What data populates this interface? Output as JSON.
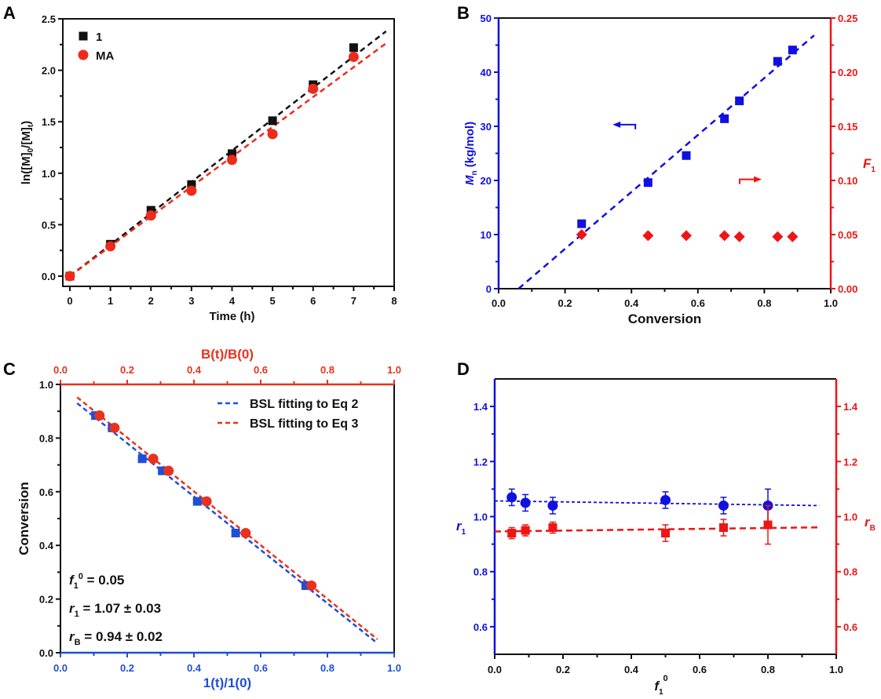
{
  "colors": {
    "black": "#111111",
    "red": "#ee2a1b",
    "blue": "#1010e0",
    "blue_c": "#1f4fd8",
    "red_c": "#e8321e",
    "red_d": "#ee1515"
  },
  "chart_data": [
    {
      "panel": "A",
      "type": "scatter",
      "xlabel": "Time (h)",
      "ylabel": "ln([M]0/[M]t)",
      "xlim": [
        0,
        8
      ],
      "ylim": [
        -0.1,
        2.5
      ],
      "xticks": [
        "0",
        "1",
        "2",
        "3",
        "4",
        "5",
        "6",
        "7",
        "8"
      ],
      "yticks": [
        "0.0",
        "0.5",
        "1.0",
        "1.5",
        "2.0",
        "2.5"
      ],
      "legend_position": "top-left",
      "series": [
        {
          "name": "1",
          "marker": "square",
          "color": "#111111",
          "x": [
            0,
            1,
            2,
            3,
            4,
            5,
            6,
            7
          ],
          "y": [
            0.0,
            0.31,
            0.64,
            0.89,
            1.19,
            1.51,
            1.86,
            2.22
          ],
          "fit": {
            "slope": 0.305,
            "intercept": 0.0,
            "x_range": [
              0,
              7.8
            ]
          }
        },
        {
          "name": "MA",
          "marker": "circle",
          "color": "#ee2a1b",
          "x": [
            0,
            1,
            2,
            3,
            4,
            5,
            6,
            7
          ],
          "y": [
            0.0,
            0.29,
            0.59,
            0.83,
            1.13,
            1.38,
            1.82,
            2.13
          ],
          "fit": {
            "slope": 0.29,
            "intercept": 0.0,
            "x_range": [
              0,
              7.8
            ]
          }
        }
      ]
    },
    {
      "panel": "B",
      "type": "scatter",
      "xlabel": "Conversion",
      "ylabel_left": "Mn (kg/mol)",
      "ylabel_right": "F1",
      "xlim": [
        0,
        1.0
      ],
      "ylim_left": [
        0,
        50
      ],
      "ylim_right": [
        0,
        0.25
      ],
      "xticks": [
        "0.0",
        "0.2",
        "0.4",
        "0.6",
        "0.8",
        "1.0"
      ],
      "yticks_left": [
        "0",
        "10",
        "20",
        "30",
        "40",
        "50"
      ],
      "yticks_right": [
        "0.00",
        "0.05",
        "0.10",
        "0.15",
        "0.20",
        "0.25"
      ],
      "series": [
        {
          "name": "Mn",
          "axis": "left",
          "marker": "square",
          "color": "#1010e0",
          "x": [
            0.25,
            0.45,
            0.565,
            0.68,
            0.725,
            0.84,
            0.885
          ],
          "y": [
            12.0,
            19.6,
            24.6,
            31.4,
            34.7,
            42.0,
            44.1
          ],
          "fit": {
            "x_range": [
              0.06,
              0.95
            ],
            "y_range": [
              0,
              46.8
            ]
          }
        },
        {
          "name": "F1",
          "axis": "right",
          "marker": "diamond",
          "color": "#ee1515",
          "x": [
            0.25,
            0.45,
            0.565,
            0.68,
            0.725,
            0.84,
            0.885
          ],
          "y": [
            0.05,
            0.049,
            0.049,
            0.049,
            0.048,
            0.048,
            0.048
          ]
        }
      ],
      "annotations": [
        {
          "type": "arrow-left",
          "x": 0.4,
          "y": 30.3,
          "color": "#1010e0"
        },
        {
          "type": "arrow-right",
          "x": 0.74,
          "y": 0.101,
          "color": "#ee1515"
        }
      ]
    },
    {
      "panel": "C",
      "type": "scatter",
      "xlabel_bottom": "1(t)/1(0)",
      "xlabel_top": "B(t)/B(0)",
      "ylabel": "Conversion",
      "xlim": [
        0,
        1.0
      ],
      "ylim": [
        0,
        1.0
      ],
      "xticks": [
        "0.0",
        "0.2",
        "0.4",
        "0.6",
        "0.8",
        "1.0"
      ],
      "yticks": [
        "0.0",
        "0.2",
        "0.4",
        "0.6",
        "0.8",
        "1.0"
      ],
      "legend_position": "top-right",
      "legend": [
        "BSL fitting to Eq 2",
        "BSL fitting to Eq 3"
      ],
      "annotation_lines": [
        {
          "base": "f",
          "sub": "1",
          "sup": "0",
          "rest": " = 0.05"
        },
        {
          "base": "r",
          "sub": "1",
          "sup": "",
          "rest": " = 1.07 ± 0.03"
        },
        {
          "base": "r",
          "sub": "B",
          "sup": "",
          "rest": " = 0.94 ± 0.02"
        }
      ],
      "series": [
        {
          "name": "1(t)/1(0)",
          "marker": "square",
          "color": "#1f4fd8",
          "x": [
            0.105,
            0.155,
            0.245,
            0.305,
            0.41,
            0.525,
            0.735
          ],
          "y": [
            0.884,
            0.838,
            0.723,
            0.678,
            0.564,
            0.446,
            0.25
          ],
          "fit": {
            "label": "BSL fitting to Eq 2",
            "x": [
              0.05,
              0.95
            ],
            "y": [
              0.93,
              0.035
            ]
          }
        },
        {
          "name": "B(t)/B(0)",
          "marker": "circle",
          "color": "#e8321e",
          "x": [
            0.117,
            0.162,
            0.278,
            0.324,
            0.438,
            0.555,
            0.752
          ],
          "y": [
            0.884,
            0.838,
            0.723,
            0.678,
            0.564,
            0.446,
            0.25
          ],
          "fit": {
            "label": "BSL fitting to Eq 3",
            "x": [
              0.05,
              0.95
            ],
            "y": [
              0.952,
              0.05
            ]
          }
        }
      ]
    },
    {
      "panel": "D",
      "type": "scatter",
      "xlabel": "f1^0",
      "ylabel_left": "r1",
      "ylabel_right": "rB",
      "xlim": [
        0,
        1.0
      ],
      "ylim": [
        0.5,
        1.5
      ],
      "xticks": [
        "0.0",
        "0.2",
        "0.4",
        "0.6",
        "0.8",
        "1.0"
      ],
      "yticks": [
        "0.6",
        "0.8",
        "1.0",
        "1.2",
        "1.4"
      ],
      "series": [
        {
          "name": "r1",
          "axis": "left",
          "marker": "circle",
          "color": "#1010e0",
          "x": [
            0.05,
            0.09,
            0.17,
            0.5,
            0.67,
            0.8
          ],
          "y": [
            1.07,
            1.05,
            1.04,
            1.06,
            1.04,
            1.04
          ],
          "err": [
            0.03,
            0.03,
            0.03,
            0.03,
            0.03,
            0.06
          ],
          "fit": {
            "x": [
              0.0,
              0.95
            ],
            "y": [
              1.057,
              1.04
            ]
          }
        },
        {
          "name": "rB",
          "axis": "right",
          "marker": "square",
          "color": "#ee1515",
          "x": [
            0.05,
            0.09,
            0.17,
            0.5,
            0.67,
            0.8
          ],
          "y": [
            0.94,
            0.95,
            0.96,
            0.94,
            0.96,
            0.97
          ],
          "err": [
            0.02,
            0.02,
            0.02,
            0.03,
            0.03,
            0.07
          ],
          "fit": {
            "x": [
              0.0,
              0.95
            ],
            "y": [
              0.946,
              0.961
            ]
          }
        }
      ]
    }
  ],
  "panel_labels": [
    "A",
    "B",
    "C",
    "D"
  ]
}
